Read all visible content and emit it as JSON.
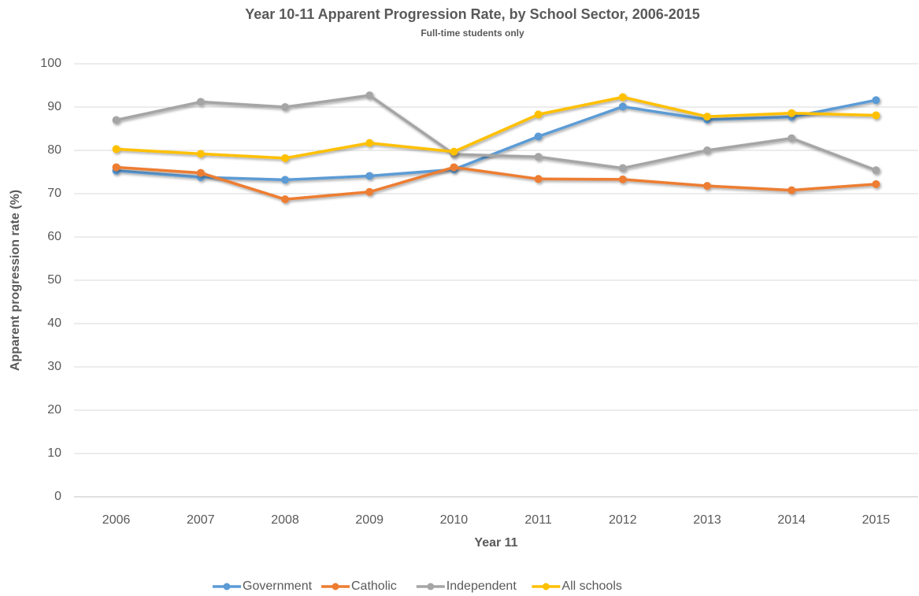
{
  "chart_data": {
    "type": "line",
    "title": "Year 10-11 Apparent Progression Rate, by School Sector, 2006-2015",
    "subtitle": "Full-time students only",
    "x_label": "Year 11",
    "y_label": "Apparent progression rate (%)",
    "categories": [
      "2006",
      "2007",
      "2008",
      "2009",
      "2010",
      "2011",
      "2012",
      "2013",
      "2014",
      "2015"
    ],
    "series": [
      {
        "name": "Government",
        "color": "#5b9bd5",
        "values": [
          75.3,
          73.8,
          73.2,
          74.1,
          75.6,
          83.2,
          90.1,
          87.1,
          87.7,
          91.6
        ]
      },
      {
        "name": "Catholic",
        "color": "#ed7d31",
        "values": [
          76.1,
          74.8,
          68.7,
          70.4,
          76.1,
          73.4,
          73.3,
          71.8,
          70.8,
          72.2
        ]
      },
      {
        "name": "Independent",
        "color": "#a5a5a5",
        "values": [
          87.0,
          91.2,
          90.0,
          92.7,
          79.1,
          78.5,
          75.9,
          80.0,
          82.8,
          75.4
        ]
      },
      {
        "name": "All schools",
        "color": "#ffc000",
        "values": [
          80.3,
          79.2,
          78.2,
          81.7,
          79.7,
          88.3,
          92.3,
          87.8,
          88.6,
          88.1
        ]
      }
    ],
    "ylim": [
      0,
      100
    ],
    "yticks": [
      0,
      10,
      20,
      30,
      40,
      50,
      60,
      70,
      80,
      90,
      100
    ],
    "grid": true,
    "legend": "bottom"
  }
}
